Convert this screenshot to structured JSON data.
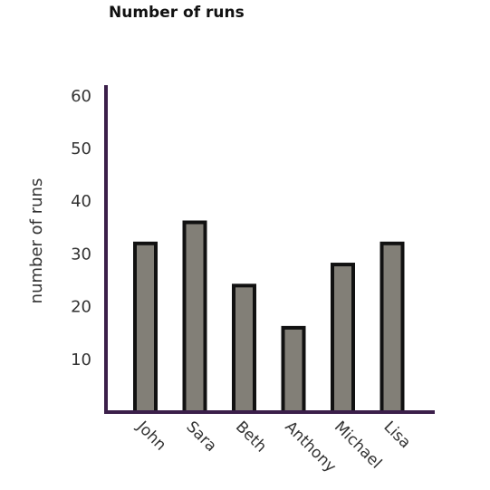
{
  "chart_data": {
    "type": "bar",
    "title": "Number of runs",
    "xlabel": "",
    "ylabel": "number of runs",
    "categories": [
      "John",
      "Sara",
      "Beth",
      "Anthony",
      "Michael",
      "Lisa"
    ],
    "values": [
      32,
      36,
      24,
      16,
      28,
      32
    ],
    "yticks": [
      10,
      20,
      30,
      40,
      50,
      60
    ],
    "ylim": [
      0,
      62
    ],
    "grid": false,
    "legend": "none",
    "colors": {
      "bar_fill": "#827f77",
      "bar_stroke": "#111111",
      "axis": "#3b1f4a"
    }
  }
}
